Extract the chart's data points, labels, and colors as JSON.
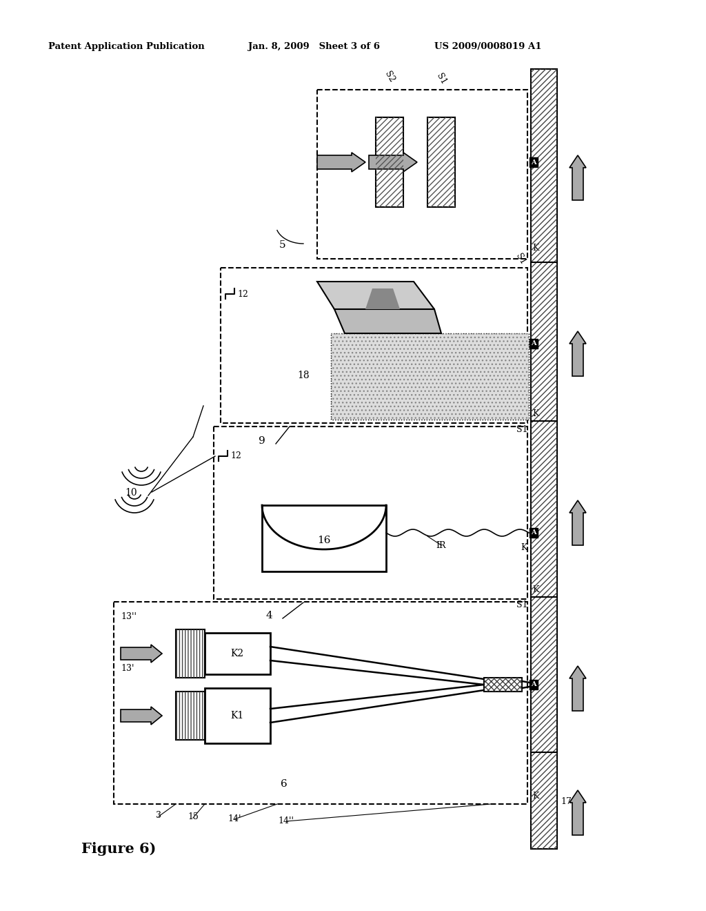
{
  "title_left": "Patent Application Publication",
  "title_mid": "Jan. 8, 2009   Sheet 3 of 6",
  "title_right": "US 2009/0008019 A1",
  "figure_label": "Figure 6)",
  "background_color": "#ffffff",
  "line_color": "#000000",
  "gray_fill": "#aaaaaa",
  "hatch_diag": "////",
  "hatch_vert": "||||"
}
